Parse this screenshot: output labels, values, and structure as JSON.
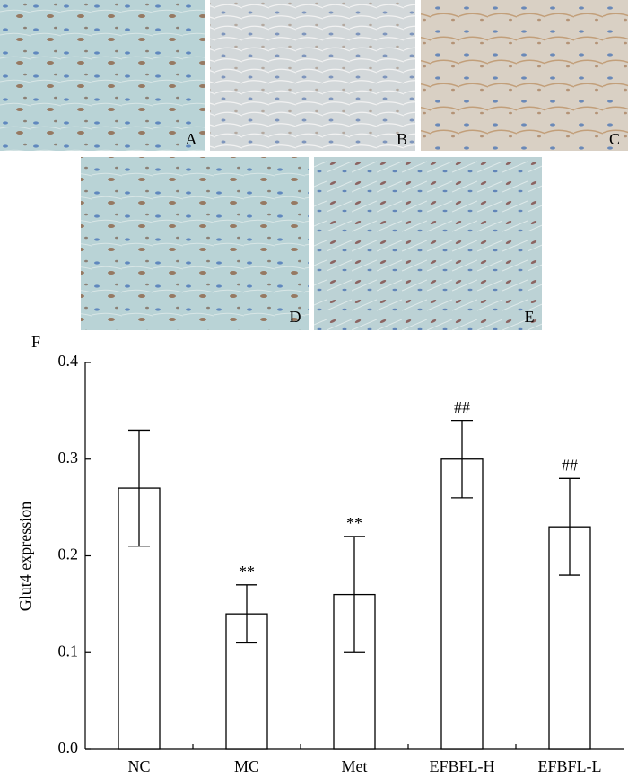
{
  "panels": {
    "labels": [
      "A",
      "B",
      "C",
      "D",
      "E"
    ]
  },
  "chart_data": {
    "type": "bar",
    "panel_label": "F",
    "y_label": "Glut4 expression",
    "categories": [
      "NC",
      "MC",
      "Met",
      "EFBFL-H",
      "EFBFL-L"
    ],
    "values": [
      0.27,
      0.14,
      0.16,
      0.3,
      0.23
    ],
    "errors": [
      0.06,
      0.03,
      0.06,
      0.04,
      0.05
    ],
    "significance": [
      null,
      "**",
      "**",
      "##",
      "##"
    ],
    "color": "#ffffff",
    "ylim": [
      0,
      0.4
    ],
    "yticks": [
      {
        "value": 0,
        "label": "0.0"
      },
      0.1,
      0.2,
      0.3,
      0.4
    ],
    "grid": false
  }
}
